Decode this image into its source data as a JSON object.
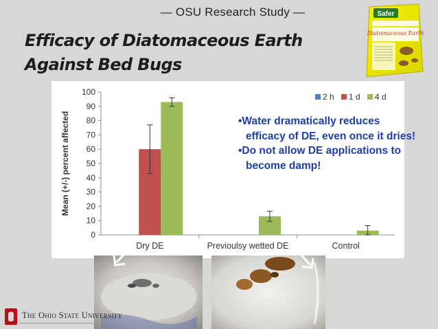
{
  "header": {
    "study_label": "— OSU Research Study —",
    "title_line1": "Efficacy of Diatomaceous Earth",
    "title_line2": "Against Bed Bugs"
  },
  "product_image": {
    "brand": "Safer",
    "name": "Diatomaceous Earth"
  },
  "colors": {
    "series_2h": "#4f81bd",
    "series_1d": "#c0504d",
    "series_4d": "#9bbb59",
    "callout_text": "#1f3fa6",
    "background": "#d7d7d7",
    "osu_red": "#b5121b"
  },
  "chart_data": {
    "type": "bar",
    "title": "",
    "xlabel": "",
    "ylabel": "Mean (+/-) percent affected",
    "ylim": [
      0,
      100
    ],
    "yticks": [
      0,
      10,
      20,
      30,
      40,
      50,
      60,
      70,
      80,
      90,
      100
    ],
    "categories": [
      "Dry DE",
      "Previoulsy wetted DE",
      "Control"
    ],
    "legend_position": "top-right",
    "grid": false,
    "series": [
      {
        "name": "2 h",
        "color": "#4f81bd",
        "values": [
          0,
          0,
          0
        ],
        "errors": [
          0,
          0,
          0
        ]
      },
      {
        "name": "1 d",
        "color": "#c0504d",
        "values": [
          60,
          0,
          0
        ],
        "errors": [
          17,
          0,
          0
        ]
      },
      {
        "name": "4 d",
        "color": "#9bbb59",
        "values": [
          93,
          13,
          3
        ],
        "errors": [
          3,
          3.5,
          3.5
        ]
      }
    ]
  },
  "callout": {
    "point1": "•Water dramatically reduces efficacy of DE, even once it dries!",
    "point2": "•Do not allow DE applications to become damp!"
  },
  "footer": {
    "university": "The Ohio State University"
  }
}
